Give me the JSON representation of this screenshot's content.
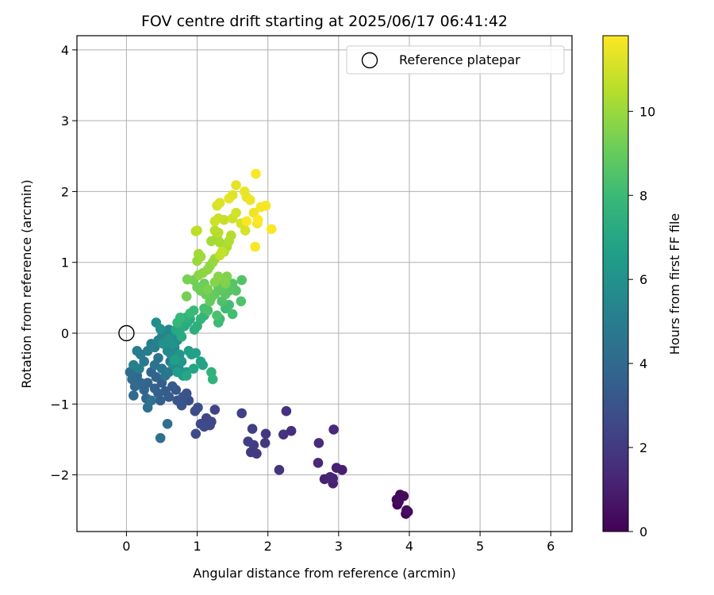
{
  "chart_data": {
    "type": "scatter",
    "title": "FOV centre drift starting at 2025/06/17 06:41:42",
    "xlabel": "Angular distance from reference (arcmin)",
    "ylabel": "Rotation from reference (arcmin)",
    "xlim": [
      -0.7,
      6.3
    ],
    "ylim": [
      -2.8,
      4.2
    ],
    "xticks": [
      0,
      1,
      2,
      3,
      4,
      5,
      6
    ],
    "yticks": [
      -2,
      -1,
      0,
      1,
      2,
      3,
      4
    ],
    "grid": true,
    "legend": {
      "position": "top-right",
      "entries": [
        "Reference platepar"
      ]
    },
    "reference_point": {
      "x": 0,
      "y": 0,
      "label": "Reference platepar"
    },
    "colorbar": {
      "label": "Hours from first FF file",
      "colormap": "viridis",
      "min": 0,
      "max": 11.8,
      "ticks": [
        0,
        2,
        4,
        6,
        8,
        10
      ]
    },
    "points": [
      [
        3.95,
        -2.55,
        0.05
      ],
      [
        3.98,
        -2.52,
        0.1
      ],
      [
        3.83,
        -2.42,
        0.15
      ],
      [
        3.82,
        -2.35,
        0.2
      ],
      [
        3.87,
        -2.28,
        0.25
      ],
      [
        3.92,
        -2.3,
        0.3
      ],
      [
        3.85,
        -2.38,
        0.35
      ],
      [
        3.96,
        -2.5,
        0.4
      ],
      [
        3.05,
        -1.93,
        1.0
      ],
      [
        2.97,
        -1.9,
        1.05
      ],
      [
        2.92,
        -2.12,
        1.1
      ],
      [
        2.8,
        -2.06,
        1.15
      ],
      [
        2.88,
        -2.03,
        1.2
      ],
      [
        2.92,
        -2.05,
        1.25
      ],
      [
        2.71,
        -1.83,
        1.3
      ],
      [
        2.93,
        -1.36,
        1.4
      ],
      [
        2.72,
        -1.55,
        1.5
      ],
      [
        2.33,
        -1.38,
        1.6
      ],
      [
        2.26,
        -1.1,
        1.7
      ],
      [
        2.22,
        -1.43,
        1.75
      ],
      [
        2.16,
        -1.93,
        1.8
      ],
      [
        1.97,
        -1.42,
        1.9
      ],
      [
        1.96,
        -1.55,
        1.95
      ],
      [
        1.84,
        -1.7,
        2.0
      ],
      [
        1.76,
        -1.68,
        2.05
      ],
      [
        1.8,
        -1.58,
        2.1
      ],
      [
        1.72,
        -1.53,
        2.15
      ],
      [
        1.78,
        -1.35,
        2.2
      ],
      [
        1.63,
        -1.13,
        2.3
      ],
      [
        1.25,
        -1.08,
        2.4
      ],
      [
        1.2,
        -1.25,
        2.45
      ],
      [
        1.13,
        -1.2,
        2.5
      ],
      [
        1.18,
        -1.3,
        2.55
      ],
      [
        1.05,
        -1.28,
        2.6
      ],
      [
        1.1,
        -1.32,
        2.65
      ],
      [
        0.98,
        -1.42,
        2.7
      ],
      [
        0.97,
        -1.1,
        2.75
      ],
      [
        1.01,
        -1.05,
        2.8
      ],
      [
        0.88,
        -0.95,
        2.9
      ],
      [
        0.85,
        -0.85,
        3.0
      ],
      [
        0.8,
        -0.9,
        3.05
      ],
      [
        0.78,
        -1.02,
        3.1
      ],
      [
        0.72,
        -0.95,
        3.15
      ],
      [
        0.7,
        -0.8,
        3.2
      ],
      [
        0.65,
        -0.75,
        3.3
      ],
      [
        0.6,
        -0.9,
        3.35
      ],
      [
        0.55,
        -0.82,
        3.4
      ],
      [
        0.5,
        -0.7,
        3.5
      ],
      [
        0.48,
        -0.95,
        3.55
      ],
      [
        0.45,
        -0.85,
        3.6
      ],
      [
        0.4,
        -0.78,
        3.65
      ],
      [
        0.42,
        -0.62,
        3.7
      ],
      [
        0.35,
        -0.55,
        3.75
      ],
      [
        0.3,
        -0.7,
        3.8
      ],
      [
        0.28,
        -0.92,
        3.85
      ],
      [
        0.25,
        -0.8,
        3.9
      ],
      [
        0.2,
        -0.7,
        3.95
      ],
      [
        0.15,
        -0.6,
        4.0
      ],
      [
        0.12,
        -0.75,
        4.05
      ],
      [
        0.1,
        -0.88,
        4.1
      ],
      [
        0.08,
        -0.65,
        4.15
      ],
      [
        0.05,
        -0.55,
        4.2
      ],
      [
        0.58,
        -1.28,
        4.3
      ],
      [
        0.48,
        -1.48,
        4.35
      ],
      [
        0.3,
        -1.05,
        4.4
      ],
      [
        0.35,
        -0.95,
        4.45
      ],
      [
        0.4,
        -0.45,
        4.5
      ],
      [
        0.45,
        -0.35,
        4.55
      ],
      [
        0.5,
        -0.5,
        4.6
      ],
      [
        0.55,
        -0.6,
        4.65
      ],
      [
        0.6,
        -0.55,
        4.7
      ],
      [
        0.62,
        -0.4,
        4.75
      ],
      [
        0.25,
        -0.4,
        4.8
      ],
      [
        0.2,
        -0.3,
        4.85
      ],
      [
        0.3,
        -0.25,
        4.9
      ],
      [
        0.35,
        -0.15,
        4.95
      ],
      [
        0.15,
        -0.25,
        5.0
      ],
      [
        0.18,
        -0.5,
        5.05
      ],
      [
        0.1,
        -0.45,
        5.1
      ],
      [
        0.4,
        -0.2,
        5.2
      ],
      [
        0.45,
        -0.1,
        5.25
      ],
      [
        0.5,
        -0.05,
        5.3
      ],
      [
        0.55,
        0.02,
        5.35
      ],
      [
        0.6,
        0.05,
        5.4
      ],
      [
        0.65,
        0.0,
        5.45
      ],
      [
        0.7,
        -0.05,
        5.5
      ],
      [
        0.58,
        -0.25,
        5.55
      ],
      [
        0.63,
        -0.3,
        5.6
      ],
      [
        0.68,
        -0.2,
        5.65
      ],
      [
        0.72,
        -0.1,
        5.7
      ],
      [
        0.66,
        -0.45,
        5.75
      ],
      [
        0.74,
        -0.5,
        5.8
      ],
      [
        0.42,
        0.15,
        5.85
      ],
      [
        0.48,
        0.06,
        5.9
      ],
      [
        0.52,
        -0.15,
        5.95
      ],
      [
        0.6,
        -0.08,
        6.0
      ],
      [
        0.65,
        -0.15,
        6.05
      ],
      [
        0.7,
        0.02,
        6.1
      ],
      [
        0.75,
        -0.3,
        6.15
      ],
      [
        0.78,
        -0.4,
        6.2
      ],
      [
        0.8,
        -0.6,
        6.3
      ],
      [
        0.85,
        -0.55,
        6.4
      ],
      [
        0.72,
        -0.55,
        6.5
      ],
      [
        0.68,
        -0.38,
        6.55
      ],
      [
        0.88,
        -0.25,
        6.6
      ],
      [
        0.92,
        -0.3,
        6.65
      ],
      [
        0.98,
        -0.28,
        6.7
      ],
      [
        1.05,
        -0.4,
        6.8
      ],
      [
        1.08,
        -0.45,
        6.85
      ],
      [
        0.95,
        -0.5,
        6.9
      ],
      [
        0.85,
        -0.6,
        7.0
      ],
      [
        0.7,
        0.05,
        7.1
      ],
      [
        0.75,
        0.02,
        7.15
      ],
      [
        0.78,
        -0.05,
        7.2
      ],
      [
        0.82,
        0.1,
        7.25
      ],
      [
        0.86,
        0.15,
        7.3
      ],
      [
        0.9,
        0.2,
        7.35
      ],
      [
        0.96,
        0.05,
        7.4
      ],
      [
        1.0,
        0.1,
        7.45
      ],
      [
        0.84,
        0.22,
        7.5
      ],
      [
        1.2,
        -0.55,
        7.6
      ],
      [
        1.22,
        -0.65,
        7.65
      ],
      [
        1.05,
        0.2,
        7.7
      ],
      [
        1.1,
        0.25,
        7.75
      ],
      [
        0.72,
        0.15,
        7.8
      ],
      [
        0.76,
        0.22,
        7.85
      ],
      [
        0.9,
        0.28,
        7.9
      ],
      [
        0.95,
        0.32,
        7.95
      ],
      [
        1.3,
        0.15,
        8.0
      ],
      [
        1.32,
        0.2,
        8.05
      ],
      [
        1.4,
        0.35,
        8.1
      ],
      [
        1.45,
        0.4,
        8.15
      ],
      [
        1.5,
        0.27,
        8.2
      ],
      [
        1.1,
        0.35,
        8.3
      ],
      [
        1.15,
        0.32,
        8.35
      ],
      [
        1.28,
        0.25,
        8.4
      ],
      [
        1.35,
        0.45,
        8.45
      ],
      [
        1.62,
        0.45,
        8.5
      ],
      [
        1.63,
        0.75,
        8.55
      ],
      [
        1.55,
        0.6,
        8.6
      ],
      [
        1.5,
        0.7,
        8.65
      ],
      [
        1.45,
        0.6,
        8.7
      ],
      [
        1.4,
        0.55,
        8.75
      ],
      [
        1.35,
        0.6,
        8.8
      ],
      [
        1.3,
        0.65,
        8.85
      ],
      [
        1.25,
        0.55,
        8.9
      ],
      [
        1.2,
        0.5,
        8.95
      ],
      [
        1.18,
        0.45,
        9.0
      ],
      [
        1.12,
        0.55,
        9.05
      ],
      [
        1.1,
        0.7,
        9.1
      ],
      [
        1.05,
        0.6,
        9.15
      ],
      [
        1.0,
        0.65,
        9.2
      ],
      [
        0.95,
        0.75,
        9.25
      ],
      [
        0.85,
        0.52,
        9.3
      ],
      [
        0.86,
        0.76,
        9.35
      ],
      [
        1.15,
        0.62,
        9.4
      ],
      [
        1.4,
        0.7,
        9.45
      ],
      [
        1.42,
        0.8,
        9.5
      ],
      [
        1.38,
        0.75,
        9.55
      ],
      [
        1.25,
        0.72,
        9.6
      ],
      [
        1.3,
        0.8,
        9.65
      ],
      [
        1.02,
        0.82,
        9.7
      ],
      [
        1.08,
        0.85,
        9.75
      ],
      [
        1.15,
        0.9,
        9.8
      ],
      [
        1.18,
        0.95,
        9.85
      ],
      [
        1.22,
        1.0,
        9.9
      ],
      [
        1.25,
        1.05,
        9.95
      ],
      [
        1.0,
        1.02,
        10.0
      ],
      [
        1.05,
        1.08,
        10.05
      ],
      [
        1.02,
        1.12,
        10.1
      ],
      [
        1.2,
        1.3,
        10.15
      ],
      [
        1.28,
        1.35,
        10.2
      ],
      [
        1.32,
        1.28,
        10.25
      ],
      [
        1.38,
        1.15,
        10.3
      ],
      [
        1.42,
        1.22,
        10.35
      ],
      [
        1.45,
        1.3,
        10.4
      ],
      [
        1.48,
        1.38,
        10.45
      ],
      [
        1.25,
        1.45,
        10.5
      ],
      [
        1.3,
        1.42,
        10.55
      ],
      [
        0.98,
        1.44,
        10.6
      ],
      [
        1.0,
        1.45,
        10.65
      ],
      [
        1.32,
        1.1,
        10.7
      ],
      [
        1.35,
        1.15,
        10.75
      ],
      [
        1.38,
        1.6,
        10.8
      ],
      [
        1.3,
        1.62,
        10.85
      ],
      [
        1.25,
        1.58,
        10.9
      ],
      [
        1.5,
        1.62,
        10.95
      ],
      [
        1.55,
        1.7,
        11.0
      ],
      [
        1.62,
        1.55,
        11.05
      ],
      [
        1.68,
        1.45,
        11.1
      ],
      [
        1.28,
        1.8,
        11.15
      ],
      [
        1.32,
        1.84,
        11.2
      ],
      [
        1.5,
        1.95,
        11.25
      ],
      [
        1.45,
        1.9,
        11.3
      ],
      [
        1.55,
        2.09,
        11.35
      ],
      [
        1.7,
        1.92,
        11.4
      ],
      [
        1.67,
        2.0,
        11.45
      ],
      [
        1.75,
        1.88,
        11.5
      ],
      [
        1.8,
        1.7,
        11.55
      ],
      [
        1.85,
        1.55,
        11.6
      ],
      [
        1.9,
        1.78,
        11.65
      ],
      [
        1.97,
        1.8,
        11.7
      ],
      [
        1.82,
        1.22,
        11.72
      ],
      [
        2.05,
        1.47,
        11.74
      ],
      [
        1.83,
        2.25,
        11.76
      ],
      [
        1.7,
        1.58,
        11.78
      ],
      [
        1.86,
        1.6,
        11.8
      ]
    ]
  }
}
